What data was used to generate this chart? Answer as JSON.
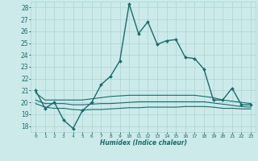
{
  "xlabel": "Humidex (Indice chaleur)",
  "background_color": "#cceaea",
  "grid_color": "#aad4d4",
  "line_color": "#1a6b6b",
  "xlim": [
    -0.5,
    23.5
  ],
  "ylim": [
    17.5,
    28.5
  ],
  "yticks": [
    18,
    19,
    20,
    21,
    22,
    23,
    24,
    25,
    26,
    27,
    28
  ],
  "xticks": [
    0,
    1,
    2,
    3,
    4,
    5,
    6,
    7,
    8,
    9,
    10,
    11,
    12,
    13,
    14,
    15,
    16,
    17,
    18,
    19,
    20,
    21,
    22,
    23
  ],
  "series_main": {
    "x": [
      0,
      1,
      2,
      3,
      4,
      5,
      6,
      7,
      8,
      9,
      10,
      11,
      12,
      13,
      14,
      15,
      16,
      17,
      18,
      19,
      20,
      21,
      22,
      23
    ],
    "y": [
      21.0,
      19.5,
      20.0,
      18.5,
      17.8,
      19.3,
      20.0,
      21.5,
      22.2,
      23.5,
      28.3,
      25.8,
      26.8,
      24.9,
      25.2,
      25.3,
      23.8,
      23.7,
      22.8,
      20.2,
      20.2,
      21.2,
      19.8,
      19.8
    ],
    "linewidth": 1.0,
    "markersize": 2.0
  },
  "series_flat": [
    {
      "x": [
        0,
        1,
        2,
        3,
        4,
        5,
        6,
        7,
        8,
        9,
        10,
        11,
        12,
        13,
        14,
        15,
        16,
        17,
        18,
        19,
        20,
        21,
        22,
        23
      ],
      "y": [
        20.8,
        20.2,
        20.2,
        20.2,
        20.2,
        20.2,
        20.3,
        20.4,
        20.5,
        20.55,
        20.6,
        20.6,
        20.6,
        20.6,
        20.6,
        20.6,
        20.6,
        20.6,
        20.5,
        20.4,
        20.2,
        20.1,
        20.0,
        19.9
      ],
      "linewidth": 0.8
    },
    {
      "x": [
        0,
        1,
        2,
        3,
        4,
        5,
        6,
        7,
        8,
        9,
        10,
        11,
        12,
        13,
        14,
        15,
        16,
        17,
        18,
        19,
        20,
        21,
        22,
        23
      ],
      "y": [
        20.2,
        19.9,
        19.9,
        19.9,
        19.8,
        19.8,
        19.85,
        19.9,
        19.9,
        19.95,
        20.0,
        20.05,
        20.05,
        20.05,
        20.05,
        20.05,
        20.05,
        20.05,
        20.05,
        19.95,
        19.85,
        19.75,
        19.65,
        19.6
      ],
      "linewidth": 0.8
    },
    {
      "x": [
        0,
        1,
        2,
        3,
        4,
        5,
        6,
        7,
        8,
        9,
        10,
        11,
        12,
        13,
        14,
        15,
        16,
        17,
        18,
        19,
        20,
        21,
        22,
        23
      ],
      "y": [
        19.9,
        19.6,
        19.5,
        19.5,
        19.4,
        19.35,
        19.4,
        19.4,
        19.45,
        19.5,
        19.55,
        19.55,
        19.6,
        19.6,
        19.6,
        19.6,
        19.65,
        19.65,
        19.65,
        19.6,
        19.5,
        19.5,
        19.45,
        19.45
      ],
      "linewidth": 0.8
    }
  ]
}
